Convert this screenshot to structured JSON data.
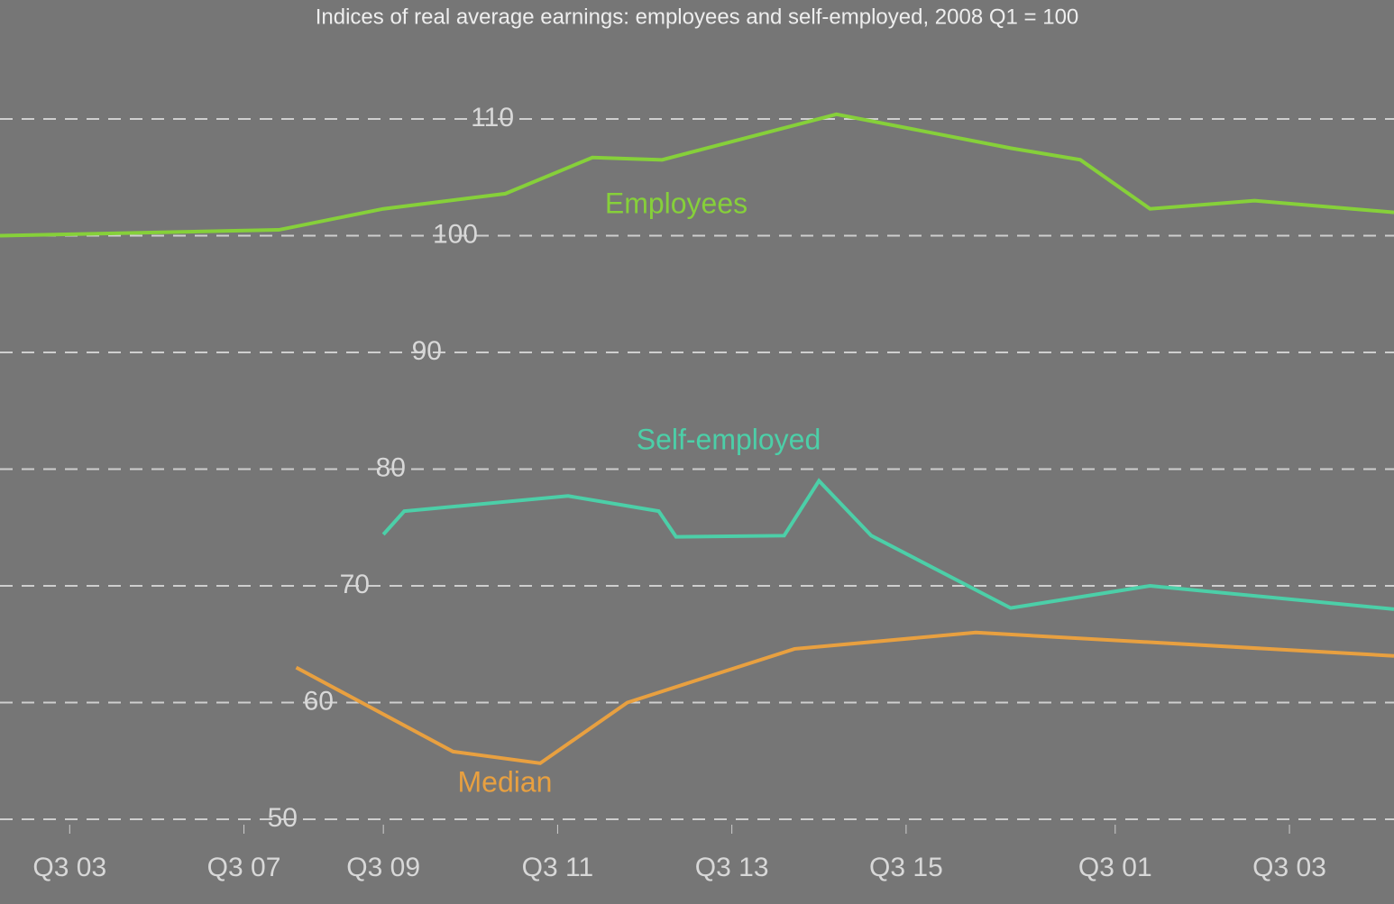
{
  "chart_data": {
    "type": "line",
    "title": "Indices of real average earnings: employees and self-employed, 2008 Q1 = 100",
    "xlim": [
      0,
      40
    ],
    "xticks": [
      {
        "value": 2,
        "label": "Q3 03"
      },
      {
        "value": 7,
        "label": "Q3 07"
      },
      {
        "value": 11,
        "label": "Q3 09"
      },
      {
        "value": 16,
        "label": "Q3 11"
      },
      {
        "value": 21,
        "label": "Q3 13"
      },
      {
        "value": 26,
        "label": "Q3 15"
      },
      {
        "value": 32,
        "label": "Q3 01"
      },
      {
        "value": 37,
        "label": "Q3 03"
      }
    ],
    "ylim": [
      50,
      110
    ],
    "yticks": [
      50,
      60,
      70,
      80,
      90,
      100,
      110
    ],
    "grid": true,
    "series": [
      {
        "name": "Employees",
        "color": "#86d03a",
        "x": [
          0,
          8,
          11,
          14.5,
          17,
          19,
          24,
          29,
          31,
          33,
          36,
          40
        ],
        "values": [
          100,
          100.5,
          102.3,
          103.6,
          106.7,
          106.5,
          110.4,
          107.5,
          106.5,
          102.3,
          103,
          102
        ]
      },
      {
        "name": "Self-employed",
        "color": "#4ccfa8",
        "x": [
          11,
          11.6,
          16.3,
          18.9,
          19.4,
          22.5,
          23.5,
          25,
          29,
          33,
          40
        ],
        "values": [
          74.4,
          76.4,
          77.7,
          76.4,
          74.2,
          74.3,
          79,
          74.3,
          68.1,
          70,
          68
        ]
      },
      {
        "name": "Median",
        "color": "#e8a040",
        "x": [
          8.5,
          13,
          15.5,
          18,
          22.8,
          28,
          40
        ],
        "values": [
          63,
          55.8,
          54.8,
          60,
          64.6,
          66,
          64
        ]
      }
    ]
  }
}
